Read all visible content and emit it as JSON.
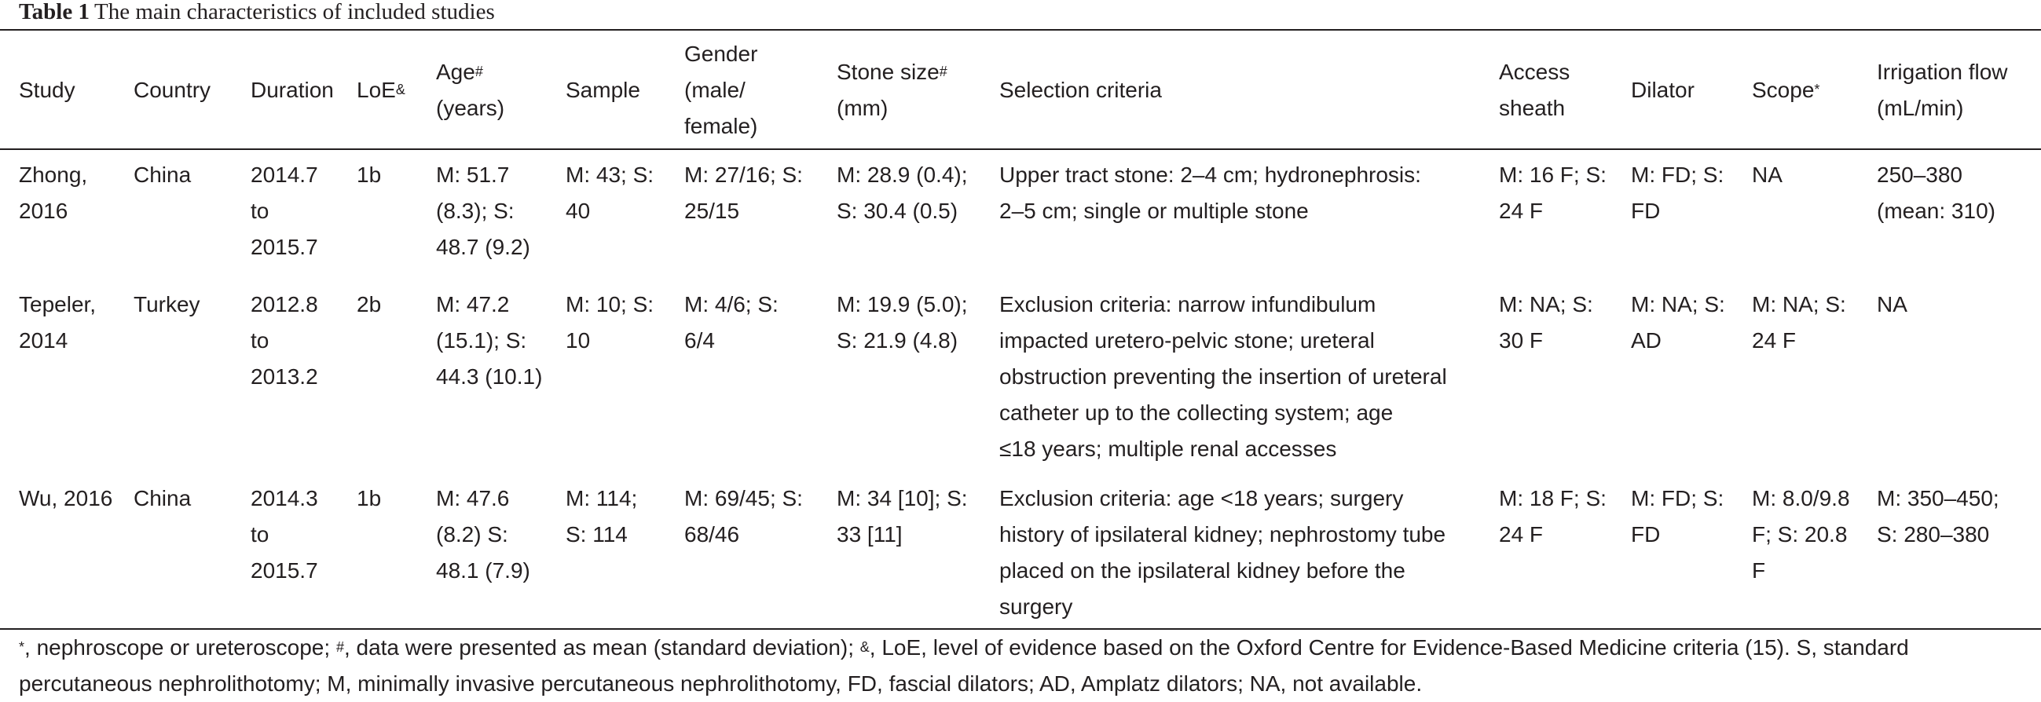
{
  "caption": {
    "label": "Table 1",
    "text": "The main characteristics of included studies"
  },
  "headers": [
    {
      "lines": [
        "Study"
      ]
    },
    {
      "lines": [
        "Country"
      ]
    },
    {
      "lines": [
        "Duration"
      ]
    },
    {
      "lines": [
        "LoE"
      ],
      "sup": "&"
    },
    {
      "lines": [
        "Age",
        "(years)"
      ],
      "sup": "#"
    },
    {
      "lines": [
        "Sample"
      ]
    },
    {
      "lines": [
        "Gender",
        "(male/",
        "female)"
      ]
    },
    {
      "lines": [
        "Stone size",
        "(mm)"
      ],
      "sup": "#"
    },
    {
      "lines": [
        "Selection criteria"
      ]
    },
    {
      "lines": [
        "Access",
        "sheath"
      ]
    },
    {
      "lines": [
        "Dilator"
      ]
    },
    {
      "lines": [
        "Scope"
      ],
      "sup": "*"
    },
    {
      "lines": [
        "Irrigation flow",
        "(mL/min)"
      ]
    }
  ],
  "rows": [
    [
      [
        "Zhong,",
        "2016"
      ],
      [
        "China"
      ],
      [
        "2014.7",
        "to",
        "2015.7"
      ],
      [
        "1b"
      ],
      [
        "M: 51.7",
        "(8.3); S:",
        "48.7 (9.2)"
      ],
      [
        "M: 43; S:",
        "40"
      ],
      [
        "M: 27/16; S:",
        "25/15"
      ],
      [
        "M: 28.9 (0.4);",
        "S: 30.4 (0.5)"
      ],
      [
        "Upper tract stone: 2–4 cm; hydronephrosis:",
        "2–5 cm; single or multiple stone"
      ],
      [
        "M: 16 F; S:",
        "24 F"
      ],
      [
        "M: FD; S:",
        "FD"
      ],
      [
        "NA"
      ],
      [
        "250–380",
        "(mean: 310)"
      ]
    ],
    [
      [
        "Tepeler,",
        "2014"
      ],
      [
        "Turkey"
      ],
      [
        "2012.8",
        "to",
        "2013.2"
      ],
      [
        "2b"
      ],
      [
        "M: 47.2",
        "(15.1); S:",
        "44.3 (10.1)"
      ],
      [
        "M: 10; S:",
        "10"
      ],
      [
        "M: 4/6; S:",
        "6/4"
      ],
      [
        "M: 19.9 (5.0);",
        "S: 21.9 (4.8)"
      ],
      [
        "Exclusion criteria: narrow infundibulum",
        "impacted uretero-pelvic stone; ureteral",
        "obstruction preventing the insertion of ureteral",
        "catheter up to the collecting system; age",
        "≤18 years; multiple renal accesses"
      ],
      [
        "M: NA; S:",
        "30 F"
      ],
      [
        "M: NA; S:",
        "AD"
      ],
      [
        "M: NA; S:",
        "24 F"
      ],
      [
        "NA"
      ]
    ],
    [
      [
        "Wu, 2016"
      ],
      [
        "China"
      ],
      [
        "2014.3",
        "to",
        "2015.7"
      ],
      [
        "1b"
      ],
      [
        "M: 47.6",
        "(8.2) S:",
        "48.1 (7.9)"
      ],
      [
        "M: 114;",
        "S: 114"
      ],
      [
        "M: 69/45; S:",
        "68/46"
      ],
      [
        "M: 34 [10]; S:",
        "33 [11]"
      ],
      [
        "Exclusion criteria: age <18 years; surgery",
        "history of ipsilateral kidney; nephrostomy tube",
        "placed on the ipsilateral kidney before the",
        "surgery"
      ],
      [
        "M: 18 F; S:",
        "24 F"
      ],
      [
        "M: FD; S:",
        "FD"
      ],
      [
        "M: 8.0/9.8",
        "F; S: 20.8",
        "F"
      ],
      [
        "M: 350–450;",
        "S: 280–380"
      ]
    ]
  ],
  "footnote": {
    "sup_star": "*",
    "t1": ", nephroscope or ureteroscope; ",
    "sup_hash": "#",
    "t2": ", data were presented as mean (standard deviation); ",
    "sup_amp": "&",
    "t3": ", LoE, level of evidence based on the Oxford Centre for Evidence-Based Medicine criteria (15). S, standard percutaneous nephrolithotomy; M, minimally invasive percutaneous nephrolithotomy, FD, fascial dilators; AD, Amplatz dilators; NA, not available."
  }
}
